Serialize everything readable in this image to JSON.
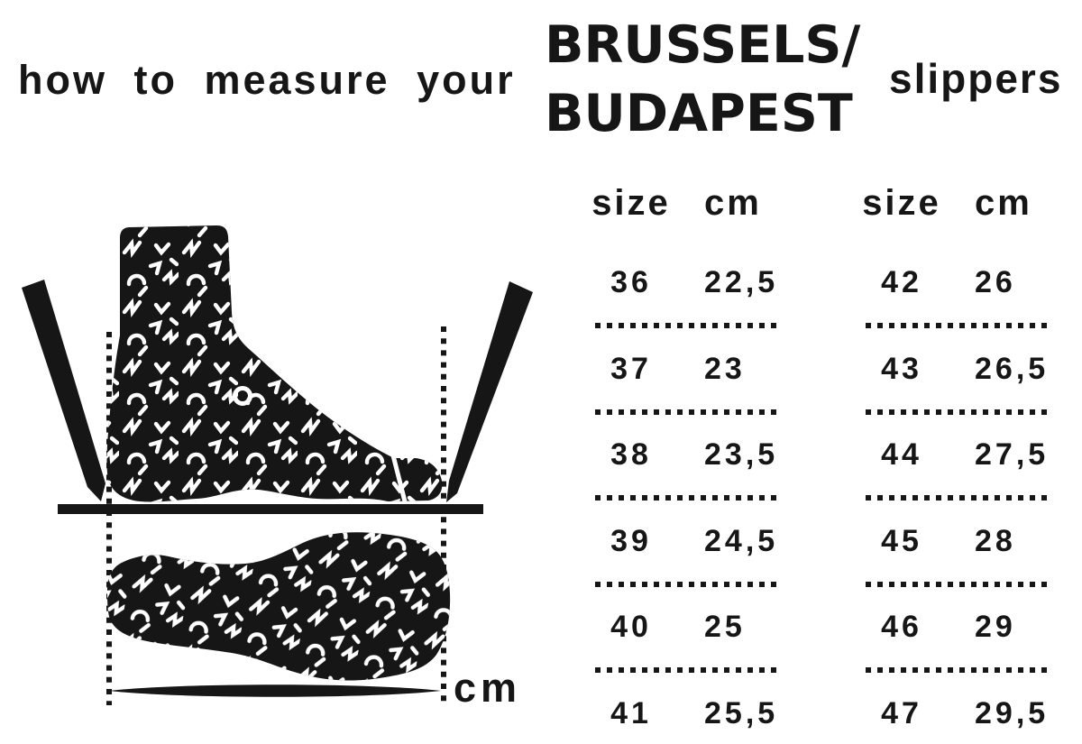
{
  "heading": {
    "prefix": "how to measure your",
    "product_line1": "BRUSSELS/",
    "product_line2": "BUDAPEST",
    "suffix": "slippers"
  },
  "diagram": {
    "unit_label": "cm",
    "ink_color": "#161616",
    "background_color": "#ffffff",
    "pattern_color": "#ffffff"
  },
  "tables": [
    {
      "headers": {
        "size": "size",
        "cm": "cm"
      },
      "rows": [
        {
          "size": "36",
          "cm": "22,5"
        },
        {
          "size": "37",
          "cm": "23"
        },
        {
          "size": "38",
          "cm": "23,5"
        },
        {
          "size": "39",
          "cm": "24,5"
        },
        {
          "size": "40",
          "cm": "25"
        },
        {
          "size": "41",
          "cm": "25,5"
        }
      ]
    },
    {
      "headers": {
        "size": "size",
        "cm": "cm"
      },
      "rows": [
        {
          "size": "42",
          "cm": "26"
        },
        {
          "size": "43",
          "cm": "26,5"
        },
        {
          "size": "44",
          "cm": "27,5"
        },
        {
          "size": "45",
          "cm": "28"
        },
        {
          "size": "46",
          "cm": "29"
        },
        {
          "size": "47",
          "cm": "29,5"
        }
      ]
    }
  ],
  "chart_data": {
    "type": "table",
    "title": "BRUSSELS/BUDAPEST slippers size chart",
    "columns": [
      "size",
      "cm"
    ],
    "rows": [
      [
        36,
        22.5
      ],
      [
        37,
        23
      ],
      [
        38,
        23.5
      ],
      [
        39,
        24.5
      ],
      [
        40,
        25
      ],
      [
        41,
        25.5
      ],
      [
        42,
        26
      ],
      [
        43,
        26.5
      ],
      [
        44,
        27.5
      ],
      [
        45,
        28
      ],
      [
        46,
        29
      ],
      [
        47,
        29.5
      ]
    ]
  }
}
